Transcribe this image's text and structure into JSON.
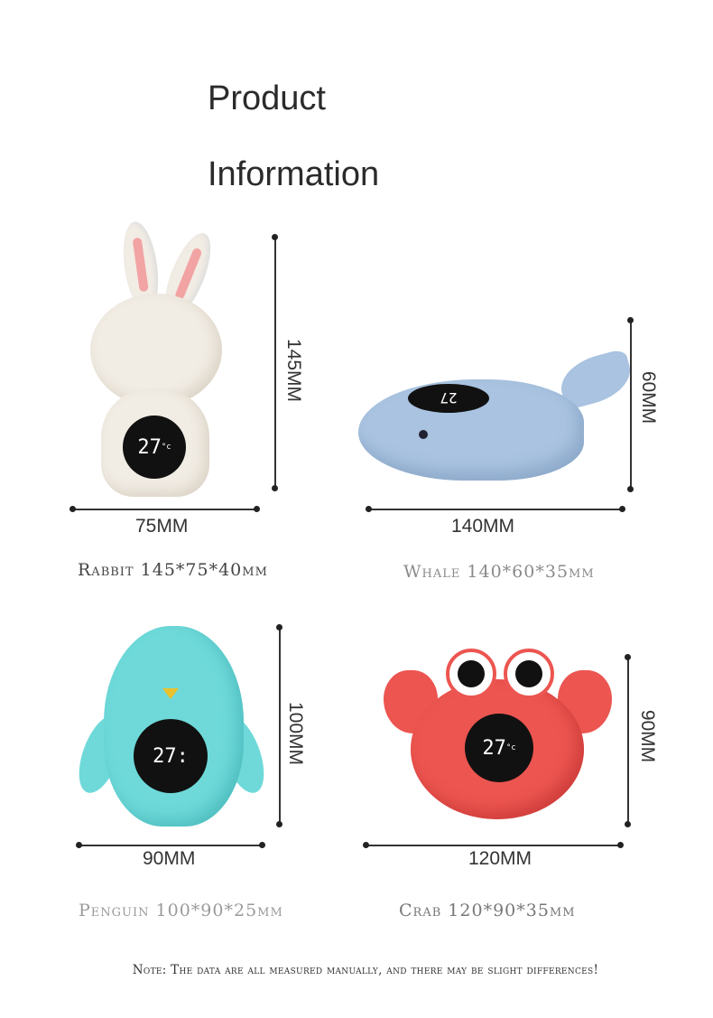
{
  "header": {
    "title_line1": "Product",
    "title_line2": "Information"
  },
  "products": [
    {
      "name": "rabbit",
      "caption": "Rabbit 145*75*40mm",
      "height_label": "145MM",
      "width_label": "75MM",
      "display": "27",
      "unit": "°c",
      "color": "#f1ece4",
      "caption_color": "#444444"
    },
    {
      "name": "whale",
      "caption": "Whale 140*60*35mm",
      "height_label": "60MM",
      "width_label": "140MM",
      "display": "27",
      "color": "#a9c3e0",
      "caption_color": "#8a8a8a"
    },
    {
      "name": "penguin",
      "caption": "Penguin 100*90*25mm",
      "height_label": "100MM",
      "width_label": "90MM",
      "display": "27:",
      "color": "#6fd9d9",
      "caption_color": "#9a9a9a"
    },
    {
      "name": "crab",
      "caption": "Crab 120*90*35mm",
      "height_label": "90MM",
      "width_label": "120MM",
      "display": "27",
      "unit": "°c",
      "color": "#ec5550",
      "caption_color": "#777777"
    }
  ],
  "note": "Note: The data are all measured manually, and there may be slight differences!"
}
